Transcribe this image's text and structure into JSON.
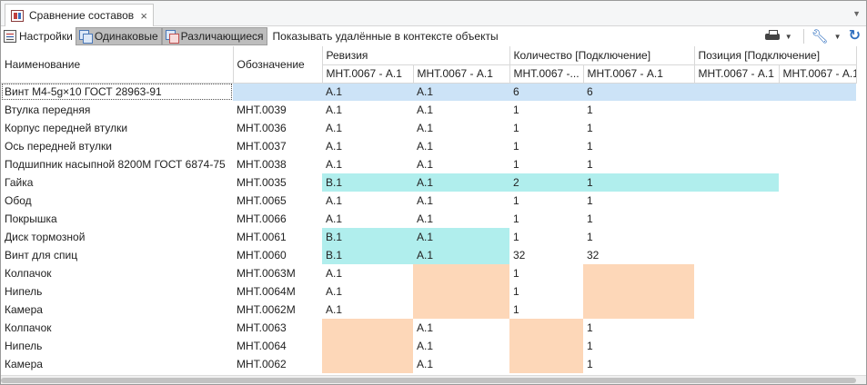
{
  "tab": {
    "title": "Сравнение составов",
    "close": "×"
  },
  "toolbar": {
    "settings_label": "Настройки",
    "same_label": "Одинаковые",
    "diff_label": "Различающиеся",
    "show_deleted_label": "Показывать удалённые в контексте объекты"
  },
  "headers": {
    "name": "Наименование",
    "designation": "Обозначение",
    "revision_group": "Ревизия",
    "quantity_group": "Количество [Подключение]",
    "position_group": "Позиция [Подключение]",
    "sub": [
      "МНТ.0067 - А.1",
      "МНТ.0067 - А.1",
      "МНТ.0067 -...",
      "МНТ.0067 - А.1",
      "МНТ.0067 - А.1",
      "МНТ.0067 - А.1"
    ]
  },
  "rows": [
    {
      "name": "Винт М4-5g×10 ГОСТ 28963-91",
      "designation": "",
      "rev1": "А.1",
      "rev2": "А.1",
      "qty1": "6",
      "qty2": "6",
      "pos1": "",
      "pos2": ""
    },
    {
      "name": "Втулка передняя",
      "designation": "МНТ.0039",
      "rev1": "А.1",
      "rev2": "А.1",
      "qty1": "1",
      "qty2": "1",
      "pos1": "",
      "pos2": ""
    },
    {
      "name": "Корпус передней втулки",
      "designation": "МНТ.0036",
      "rev1": "А.1",
      "rev2": "А.1",
      "qty1": "1",
      "qty2": "1",
      "pos1": "",
      "pos2": ""
    },
    {
      "name": "Ось передней втулки",
      "designation": "МНТ.0037",
      "rev1": "А.1",
      "rev2": "А.1",
      "qty1": "1",
      "qty2": "1",
      "pos1": "",
      "pos2": ""
    },
    {
      "name": "Подшипник насыпной 8200М ГОСТ 6874-75",
      "designation": "МНТ.0038",
      "rev1": "А.1",
      "rev2": "А.1",
      "qty1": "1",
      "qty2": "1",
      "pos1": "",
      "pos2": ""
    },
    {
      "name": "Гайка",
      "designation": "МНТ.0035",
      "rev1": "В.1",
      "rev2": "А.1",
      "qty1": "2",
      "qty2": "1",
      "pos1": "",
      "pos2": ""
    },
    {
      "name": "Обод",
      "designation": "МНТ.0065",
      "rev1": "А.1",
      "rev2": "А.1",
      "qty1": "1",
      "qty2": "1",
      "pos1": "",
      "pos2": ""
    },
    {
      "name": "Покрышка",
      "designation": "МНТ.0066",
      "rev1": "А.1",
      "rev2": "А.1",
      "qty1": "1",
      "qty2": "1",
      "pos1": "",
      "pos2": ""
    },
    {
      "name": "Диск тормозной",
      "designation": "МНТ.0061",
      "rev1": "В.1",
      "rev2": "А.1",
      "qty1": "1",
      "qty2": "1",
      "pos1": "",
      "pos2": ""
    },
    {
      "name": "Винт для спиц",
      "designation": "МНТ.0060",
      "rev1": "В.1",
      "rev2": "А.1",
      "qty1": "32",
      "qty2": "32",
      "pos1": "",
      "pos2": ""
    },
    {
      "name": "Колпачок",
      "designation": "МНТ.0063М",
      "rev1": "А.1",
      "rev2": "",
      "qty1": "1",
      "qty2": "",
      "pos1": "",
      "pos2": ""
    },
    {
      "name": "Нипель",
      "designation": "МНТ.0064М",
      "rev1": "А.1",
      "rev2": "",
      "qty1": "1",
      "qty2": "",
      "pos1": "",
      "pos2": ""
    },
    {
      "name": "Камера",
      "designation": "МНТ.0062М",
      "rev1": "А.1",
      "rev2": "",
      "qty1": "1",
      "qty2": "",
      "pos1": "",
      "pos2": ""
    },
    {
      "name": "Колпачок",
      "designation": "МНТ.0063",
      "rev1": "",
      "rev2": "А.1",
      "qty1": "",
      "qty2": "1",
      "pos1": "",
      "pos2": ""
    },
    {
      "name": "Нипель",
      "designation": "МНТ.0064",
      "rev1": "",
      "rev2": "А.1",
      "qty1": "",
      "qty2": "1",
      "pos1": "",
      "pos2": ""
    },
    {
      "name": "Камера",
      "designation": "МНТ.0062",
      "rev1": "",
      "rev2": "А.1",
      "qty1": "",
      "qty2": "1",
      "pos1": "",
      "pos2": ""
    }
  ],
  "highlight_colors": {
    "changed": "#b0eeed",
    "missing": "#fdd7b8",
    "selected": "#cce3f7"
  },
  "icons": [
    "table-compare-icon",
    "settings-icon",
    "same-filter-icon",
    "diff-filter-icon",
    "print-icon",
    "wrench-icon",
    "refresh-icon"
  ]
}
